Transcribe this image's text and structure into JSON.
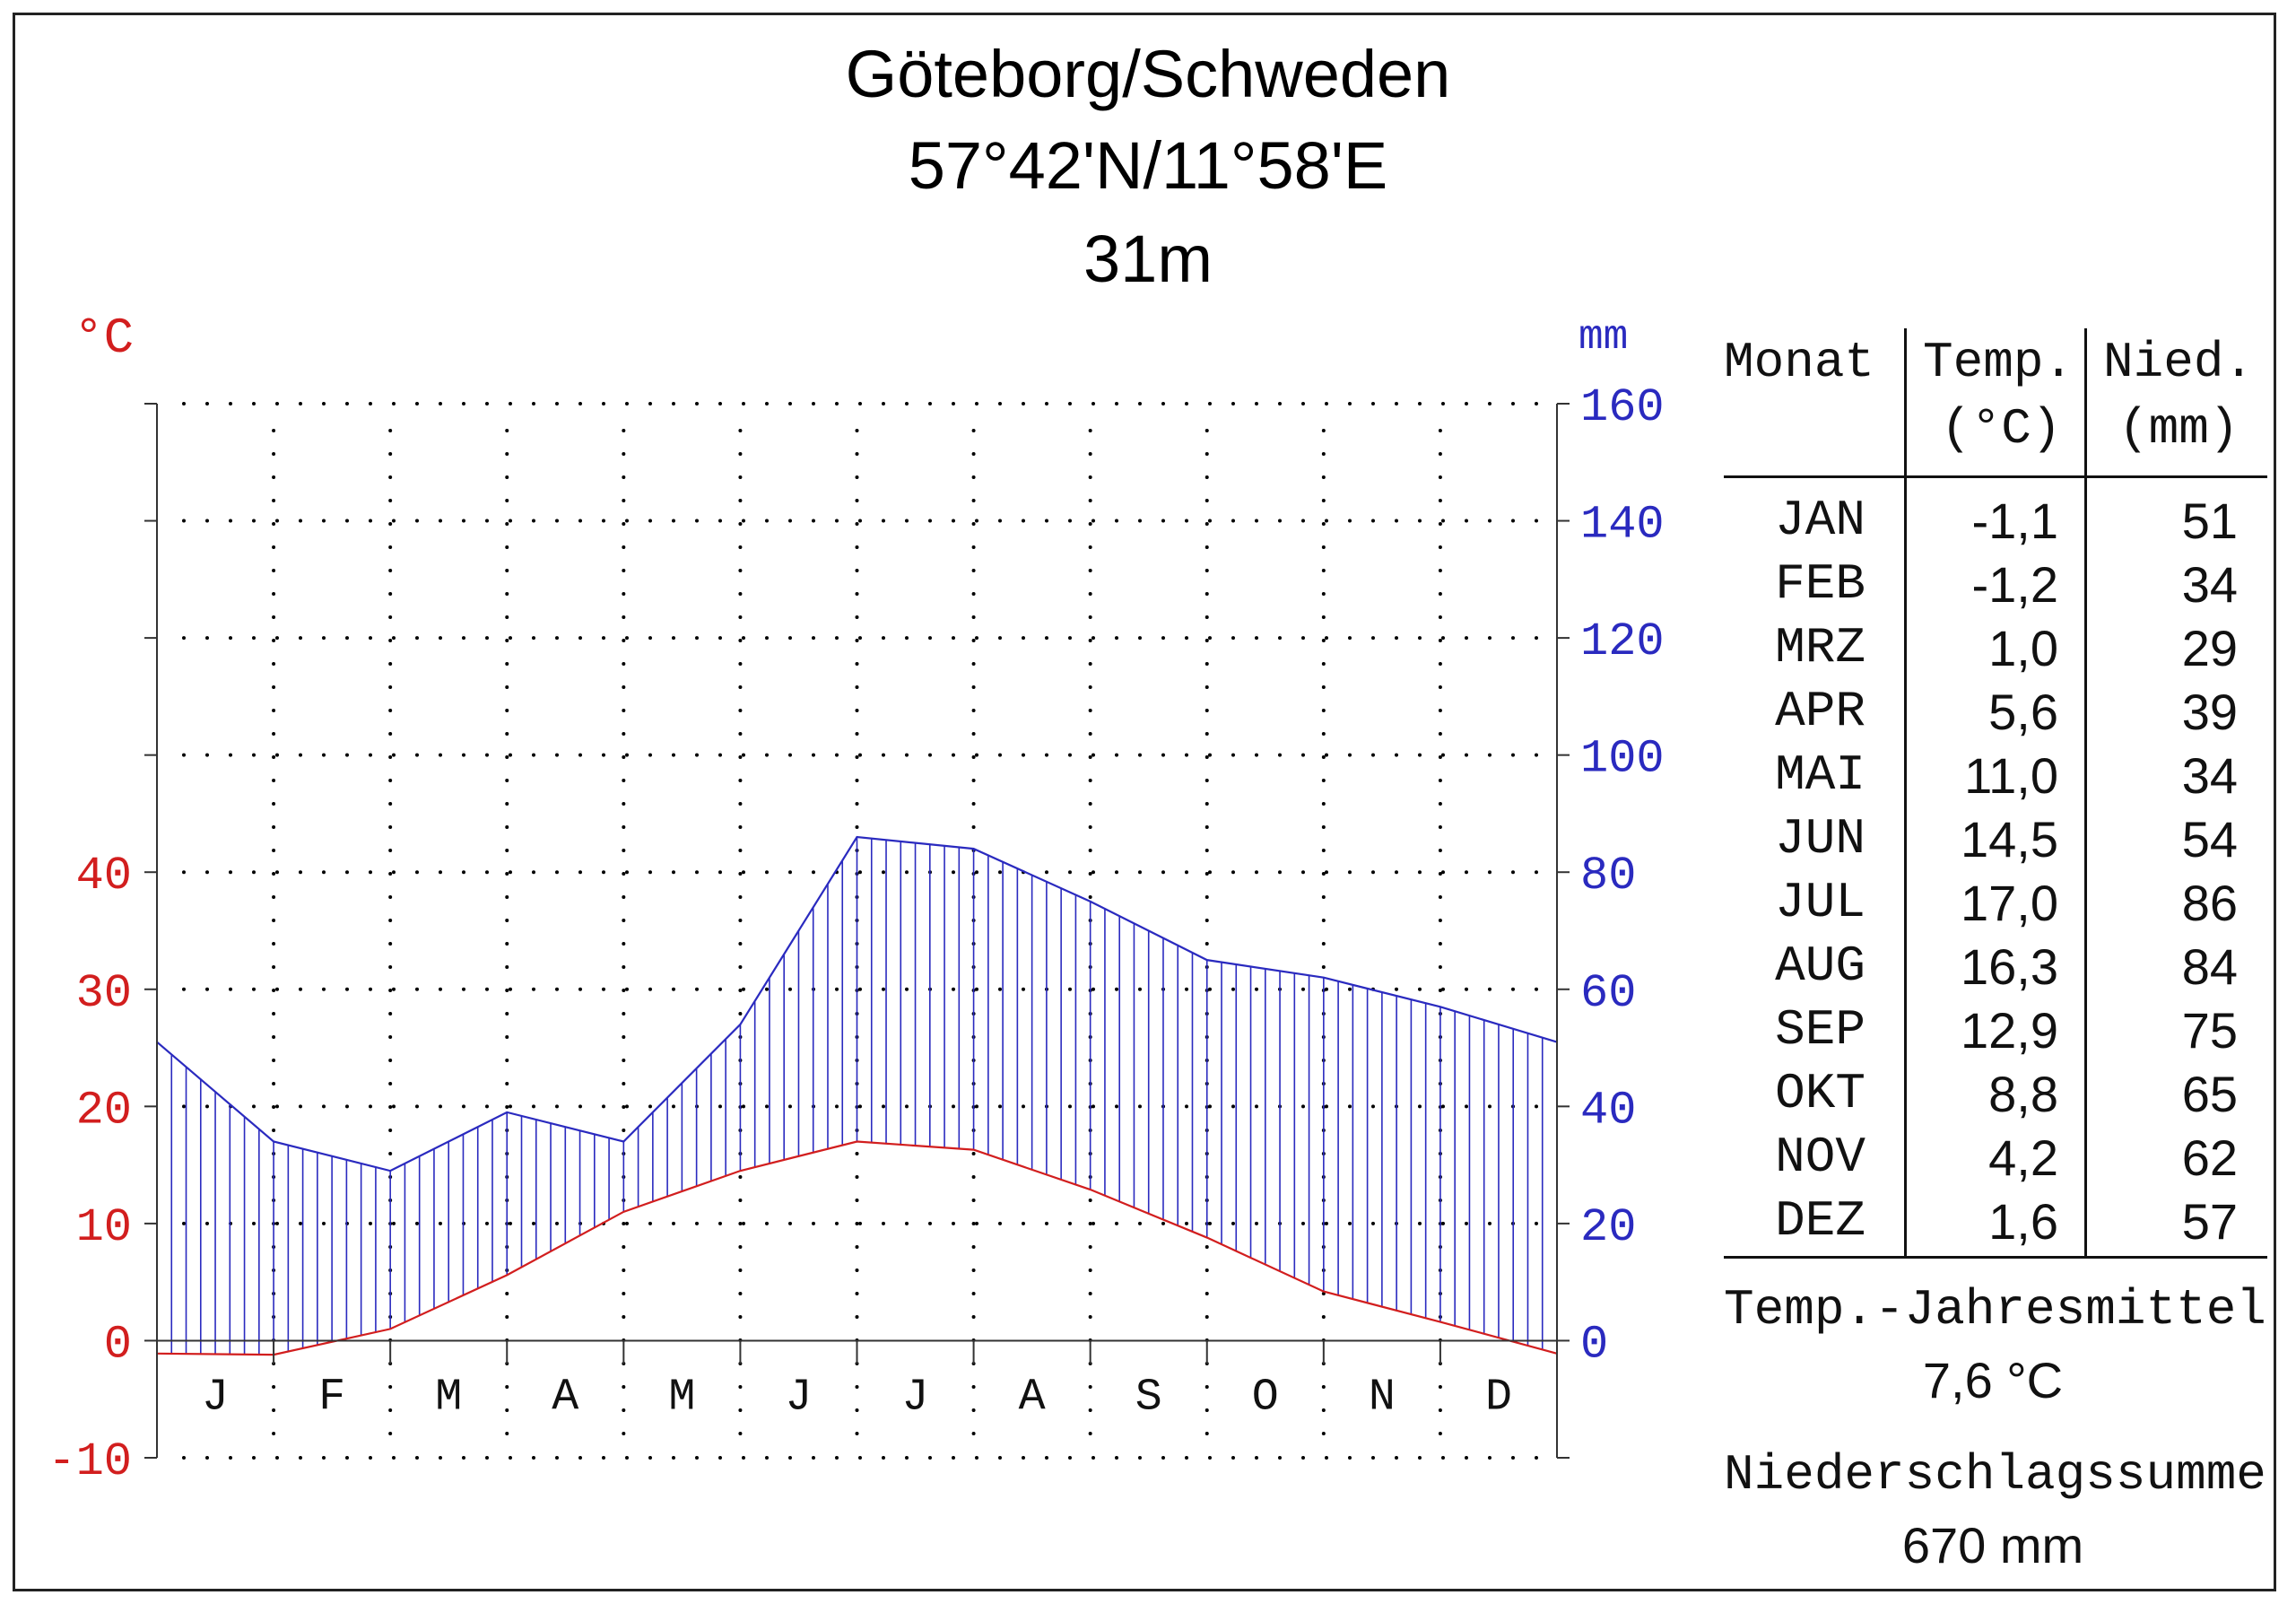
{
  "title": {
    "line1": "Göteborg/Schweden",
    "line2": "57°42'N/11°58'E",
    "line3": "31m"
  },
  "colors": {
    "temperature": "#d21e1e",
    "precipitation": "#2a2abf",
    "grid": "#000000"
  },
  "chart_data": {
    "type": "line",
    "categories": [
      "J",
      "F",
      "M",
      "A",
      "M",
      "J",
      "J",
      "A",
      "S",
      "O",
      "N",
      "D"
    ],
    "series": [
      {
        "name": "Temp. (°C)",
        "axis": "left",
        "values": [
          -1.1,
          -1.2,
          1.0,
          5.6,
          11.0,
          14.5,
          17.0,
          16.3,
          12.9,
          8.8,
          4.2,
          1.6
        ]
      },
      {
        "name": "Nied. (mm)",
        "axis": "right",
        "values": [
          51,
          34,
          29,
          39,
          34,
          54,
          86,
          84,
          75,
          65,
          62,
          57
        ]
      }
    ],
    "left_axis": {
      "label": "°C",
      "ticks": [
        "-10",
        "0",
        "10",
        "20",
        "30",
        "40"
      ],
      "tick_values": [
        -10,
        0,
        10,
        20,
        30,
        40
      ],
      "ylim": [
        -10,
        80
      ]
    },
    "right_axis": {
      "label": "mm",
      "ticks": [
        "0",
        "20",
        "40",
        "60",
        "80",
        "100",
        "120",
        "140",
        "160"
      ],
      "tick_values": [
        0,
        20,
        40,
        60,
        80,
        100,
        120,
        140,
        160
      ],
      "ylim": [
        -20,
        160
      ]
    },
    "grid": "dotted",
    "fill": "vertical hatching between temperature and precipitation curves"
  },
  "table": {
    "headers": {
      "month": "Monat",
      "temp_line1": "Temp.",
      "temp_line2": "(°C)",
      "precip_line1": "Nied.",
      "precip_line2": "(mm)"
    },
    "rows": [
      {
        "month": "JAN",
        "temp": "-1,1",
        "precip": "51"
      },
      {
        "month": "FEB",
        "temp": "-1,2",
        "precip": "34"
      },
      {
        "month": "MRZ",
        "temp": "1,0",
        "precip": "29"
      },
      {
        "month": "APR",
        "temp": "5,6",
        "precip": "39"
      },
      {
        "month": "MAI",
        "temp": "11,0",
        "precip": "34"
      },
      {
        "month": "JUN",
        "temp": "14,5",
        "precip": "54"
      },
      {
        "month": "JUL",
        "temp": "17,0",
        "precip": "86"
      },
      {
        "month": "AUG",
        "temp": "16,3",
        "precip": "84"
      },
      {
        "month": "SEP",
        "temp": "12,9",
        "precip": "75"
      },
      {
        "month": "OKT",
        "temp": "8,8",
        "precip": "65"
      },
      {
        "month": "NOV",
        "temp": "4,2",
        "precip": "62"
      },
      {
        "month": "DEZ",
        "temp": "1,6",
        "precip": "57"
      }
    ]
  },
  "summary": {
    "mean_label": "Temp.-Jahresmittel",
    "mean_value": "7,6 °C",
    "sum_label": "Niederschlagssumme",
    "sum_value": "670 mm"
  }
}
